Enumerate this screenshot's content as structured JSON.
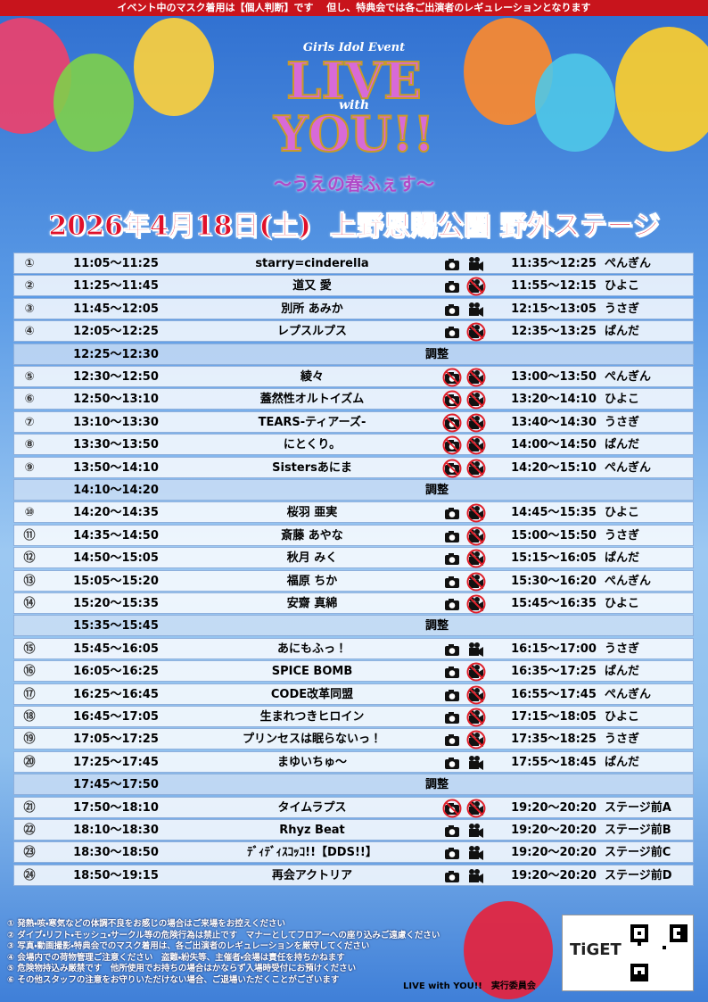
{
  "header": {
    "notice": "イベント中のマスク着用は【個人判断】です　 但し、特典会では各ご出演者のレギュレーションとなります"
  },
  "logo": {
    "event": "Girls Idol Event",
    "live": "LIVE",
    "with": "with",
    "you": "YOU!!",
    "subtitle": "〜うえの春ふぇす〜"
  },
  "date": {
    "day": "2026年4月18日(土)",
    "venue": "上野恩賜公園 野外ステージ"
  },
  "table": {
    "rows": [
      {
        "no": "①",
        "time": "11:05～11:25",
        "name": "starry=cinderella",
        "photo": true,
        "video": true,
        "benefit": "11:35～12:25",
        "booth": "ぺんぎん"
      },
      {
        "no": "②",
        "time": "11:25～11:45",
        "name": "道又 愛",
        "photo": true,
        "video": false,
        "benefit": "11:55～12:15",
        "booth": "ひよこ"
      },
      {
        "no": "③",
        "time": "11:45～12:05",
        "name": "別所 あみか",
        "photo": true,
        "video": true,
        "benefit": "12:15～13:05",
        "booth": "うさぎ"
      },
      {
        "no": "④",
        "time": "12:05～12:25",
        "name": "レプスルプス",
        "photo": true,
        "video": false,
        "benefit": "12:35～13:25",
        "booth": "ぱんだ"
      },
      {
        "time": "12:25～12:30",
        "name": "調整"
      },
      {
        "no": "⑤",
        "time": "12:30～12:50",
        "name": "綾々",
        "photo": false,
        "video": false,
        "benefit": "13:00～13:50",
        "booth": "ぺんぎん"
      },
      {
        "no": "⑥",
        "time": "12:50～13:10",
        "name": "蓋然性オルトイズム",
        "photo": false,
        "video": false,
        "benefit": "13:20～14:10",
        "booth": "ひよこ"
      },
      {
        "no": "⑦",
        "time": "13:10～13:30",
        "name": "TEARS-ティアーズ-",
        "photo": false,
        "video": false,
        "benefit": "13:40～14:30",
        "booth": "うさぎ"
      },
      {
        "no": "⑧",
        "time": "13:30～13:50",
        "name": "にとくり。",
        "photo": false,
        "video": false,
        "benefit": "14:00～14:50",
        "booth": "ぱんだ"
      },
      {
        "no": "⑨",
        "time": "13:50～14:10",
        "name": "Sistersあにま",
        "photo": false,
        "video": false,
        "benefit": "14:20～15:10",
        "booth": "ぺんぎん"
      },
      {
        "time": "14:10～14:20",
        "name": "調整"
      },
      {
        "no": "⑩",
        "time": "14:20～14:35",
        "name": "桜羽 亜実",
        "photo": true,
        "video": false,
        "benefit": "14:45～15:35",
        "booth": "ひよこ"
      },
      {
        "no": "⑪",
        "time": "14:35～14:50",
        "name": "斎藤 あやな",
        "photo": true,
        "video": false,
        "benefit": "15:00～15:50",
        "booth": "うさぎ"
      },
      {
        "no": "⑫",
        "time": "14:50～15:05",
        "name": "秋月 みく",
        "photo": true,
        "video": false,
        "benefit": "15:15～16:05",
        "booth": "ぱんだ"
      },
      {
        "no": "⑬",
        "time": "15:05～15:20",
        "name": "福原 ちか",
        "photo": true,
        "video": false,
        "benefit": "15:30～16:20",
        "booth": "ぺんぎん"
      },
      {
        "no": "⑭",
        "time": "15:20～15:35",
        "name": "安齋 真綿",
        "photo": true,
        "video": false,
        "benefit": "15:45～16:35",
        "booth": "ひよこ"
      },
      {
        "time": "15:35～15:45",
        "name": "調整"
      },
      {
        "no": "⑮",
        "time": "15:45～16:05",
        "name": "あにもふっ！",
        "photo": true,
        "video": true,
        "benefit": "16:15～17:00",
        "booth": "うさぎ"
      },
      {
        "no": "⑯",
        "time": "16:05～16:25",
        "name": "SPICE BOMB",
        "photo": true,
        "video": false,
        "benefit": "16:35～17:25",
        "booth": "ぱんだ"
      },
      {
        "no": "⑰",
        "time": "16:25～16:45",
        "name": "CODE改革同盟",
        "photo": true,
        "video": false,
        "benefit": "16:55～17:45",
        "booth": "ぺんぎん"
      },
      {
        "no": "⑱",
        "time": "16:45～17:05",
        "name": "生まれつきヒロイン",
        "photo": true,
        "video": false,
        "benefit": "17:15～18:05",
        "booth": "ひよこ"
      },
      {
        "no": "⑲",
        "time": "17:05～17:25",
        "name": "プリンセスは眠らないっ！",
        "photo": true,
        "video": false,
        "benefit": "17:35～18:25",
        "booth": "うさぎ"
      },
      {
        "no": "⑳",
        "time": "17:25～17:45",
        "name": "まゆいちゅ〜",
        "photo": true,
        "video": true,
        "benefit": "17:55～18:45",
        "booth": "ぱんだ"
      },
      {
        "time": "17:45～17:50",
        "name": "調整"
      },
      {
        "no": "㉑",
        "time": "17:50～18:10",
        "name": "タイムラプス",
        "photo": false,
        "video": false,
        "benefit": "19:20～20:20",
        "booth": "ステージ前A"
      },
      {
        "no": "㉒",
        "time": "18:10～18:30",
        "name": "Rhyz Beat",
        "photo": true,
        "video": true,
        "benefit": "19:20～20:20",
        "booth": "ステージ前B"
      },
      {
        "no": "㉓",
        "time": "18:30～18:50",
        "name": "ﾃﾞｨﾃﾞｨｽｺｯｺ!!【DDS!!】",
        "photo": true,
        "video": true,
        "benefit": "19:20～20:20",
        "booth": "ステージ前C"
      },
      {
        "no": "㉔",
        "time": "18:50～19:15",
        "name": "再会アクトリア",
        "photo": true,
        "video": true,
        "benefit": "19:20～20:20",
        "booth": "ステージ前D"
      }
    ]
  },
  "notes": [
    "① 発熱・咳・寒気などの体調不良をお感じの場合はご来場をお控えください",
    "② ダイブ・リフト・モッシュ・サークル等の危険行為は禁止です　マナーとしてフロアーへの座り込みご遠慮ください",
    "③ 写真・動画撮影・特典会でのマスク着用は、各ご出演者のレギュレーションを厳守してください",
    "④ 会場内での荷物管理ご注意ください　盗難・紛失等、主催者・会場は責任を持ちかねます",
    "⑤ 危険物持込み厳禁です　他所使用でお持ちの場合はかならず入場時受付にお預けください",
    "⑥ その他スタッフの注意をお守りいただけない場合、ご退場いただくことがございます"
  ],
  "footer": {
    "organizer": "LIVE with YOU!!　実行委員会",
    "ticket": "TiGET"
  }
}
